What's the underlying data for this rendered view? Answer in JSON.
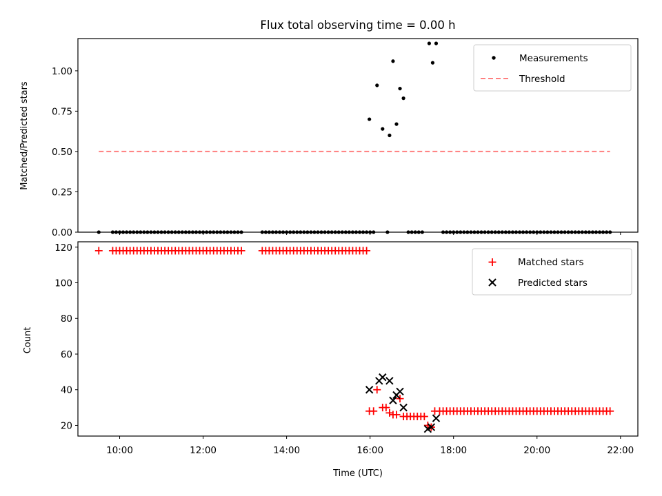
{
  "title": "Flux total observing time = 0.00 h",
  "colors": {
    "threshold": "#ff7f7f",
    "matched": "#ff0000",
    "predicted": "#000000",
    "measurements": "#000000"
  },
  "chart_data": [
    {
      "type": "scatter",
      "ylabel": "Matched/Predicted stars",
      "xlim": [
        "09:00",
        "22:25"
      ],
      "ylim": [
        0,
        1.2
      ],
      "yticks": [
        "0.00",
        "0.25",
        "0.50",
        "0.75",
        "1.00"
      ],
      "legend": [
        "Measurements",
        "Threshold"
      ],
      "legend_position": "top-right",
      "threshold": {
        "name": "Threshold",
        "value": 0.5,
        "x": [
          "09:30",
          "21:45"
        ]
      },
      "measurements": {
        "name": "Measurements",
        "points": [
          [
            "09:30",
            0
          ],
          [
            "09:50",
            0
          ],
          [
            "09:55",
            0
          ],
          [
            "10:00",
            0
          ],
          [
            "10:05",
            0
          ],
          [
            "10:10",
            0
          ],
          [
            "10:15",
            0
          ],
          [
            "10:20",
            0
          ],
          [
            "10:25",
            0
          ],
          [
            "10:30",
            0
          ],
          [
            "10:35",
            0
          ],
          [
            "10:40",
            0
          ],
          [
            "10:45",
            0
          ],
          [
            "10:50",
            0
          ],
          [
            "10:55",
            0
          ],
          [
            "11:00",
            0
          ],
          [
            "11:05",
            0
          ],
          [
            "11:10",
            0
          ],
          [
            "11:15",
            0
          ],
          [
            "11:20",
            0
          ],
          [
            "11:25",
            0
          ],
          [
            "11:30",
            0
          ],
          [
            "11:35",
            0
          ],
          [
            "11:40",
            0
          ],
          [
            "11:45",
            0
          ],
          [
            "11:50",
            0
          ],
          [
            "11:55",
            0
          ],
          [
            "12:00",
            0
          ],
          [
            "12:05",
            0
          ],
          [
            "12:10",
            0
          ],
          [
            "12:15",
            0
          ],
          [
            "12:20",
            0
          ],
          [
            "12:25",
            0
          ],
          [
            "12:30",
            0
          ],
          [
            "12:35",
            0
          ],
          [
            "12:40",
            0
          ],
          [
            "12:45",
            0
          ],
          [
            "12:50",
            0
          ],
          [
            "12:55",
            0
          ],
          [
            "13:25",
            0
          ],
          [
            "13:30",
            0
          ],
          [
            "13:35",
            0
          ],
          [
            "13:40",
            0
          ],
          [
            "13:45",
            0
          ],
          [
            "13:50",
            0
          ],
          [
            "13:55",
            0
          ],
          [
            "14:00",
            0
          ],
          [
            "14:05",
            0
          ],
          [
            "14:10",
            0
          ],
          [
            "14:15",
            0
          ],
          [
            "14:20",
            0
          ],
          [
            "14:25",
            0
          ],
          [
            "14:30",
            0
          ],
          [
            "14:35",
            0
          ],
          [
            "14:40",
            0
          ],
          [
            "14:45",
            0
          ],
          [
            "14:50",
            0
          ],
          [
            "14:55",
            0
          ],
          [
            "15:00",
            0
          ],
          [
            "15:05",
            0
          ],
          [
            "15:10",
            0
          ],
          [
            "15:15",
            0
          ],
          [
            "15:20",
            0
          ],
          [
            "15:25",
            0
          ],
          [
            "15:30",
            0
          ],
          [
            "15:35",
            0
          ],
          [
            "15:40",
            0
          ],
          [
            "15:45",
            0
          ],
          [
            "15:50",
            0
          ],
          [
            "15:55",
            0
          ],
          [
            "16:00",
            0
          ],
          [
            "16:05",
            0
          ],
          [
            "16:25",
            0
          ],
          [
            "15:59",
            0.7
          ],
          [
            "16:10",
            0.91
          ],
          [
            "16:18",
            0.64
          ],
          [
            "16:28",
            0.6
          ],
          [
            "16:33",
            1.06
          ],
          [
            "16:38",
            0.67
          ],
          [
            "16:43",
            0.89
          ],
          [
            "16:48",
            0.83
          ],
          [
            "16:55",
            0
          ],
          [
            "17:00",
            0
          ],
          [
            "17:05",
            0
          ],
          [
            "17:10",
            0
          ],
          [
            "17:15",
            0
          ],
          [
            "17:25",
            1.17
          ],
          [
            "17:30",
            1.05
          ],
          [
            "17:35",
            1.17
          ],
          [
            "17:45",
            0
          ],
          [
            "17:50",
            0
          ],
          [
            "17:55",
            0
          ],
          [
            "18:00",
            0
          ],
          [
            "18:05",
            0
          ],
          [
            "18:10",
            0
          ],
          [
            "18:15",
            0
          ],
          [
            "18:20",
            0
          ],
          [
            "18:25",
            0
          ],
          [
            "18:30",
            0
          ],
          [
            "18:35",
            0
          ],
          [
            "18:40",
            0
          ],
          [
            "18:45",
            0
          ],
          [
            "18:50",
            0
          ],
          [
            "18:55",
            0
          ],
          [
            "19:00",
            0
          ],
          [
            "19:05",
            0
          ],
          [
            "19:10",
            0
          ],
          [
            "19:15",
            0
          ],
          [
            "19:20",
            0
          ],
          [
            "19:25",
            0
          ],
          [
            "19:30",
            0
          ],
          [
            "19:35",
            0
          ],
          [
            "19:40",
            0
          ],
          [
            "19:45",
            0
          ],
          [
            "19:50",
            0
          ],
          [
            "19:55",
            0
          ],
          [
            "20:00",
            0
          ],
          [
            "20:05",
            0
          ],
          [
            "20:10",
            0
          ],
          [
            "20:15",
            0
          ],
          [
            "20:20",
            0
          ],
          [
            "20:25",
            0
          ],
          [
            "20:30",
            0
          ],
          [
            "20:35",
            0
          ],
          [
            "20:40",
            0
          ],
          [
            "20:45",
            0
          ],
          [
            "20:50",
            0
          ],
          [
            "20:55",
            0
          ],
          [
            "21:00",
            0
          ],
          [
            "21:05",
            0
          ],
          [
            "21:10",
            0
          ],
          [
            "21:15",
            0
          ],
          [
            "21:20",
            0
          ],
          [
            "21:25",
            0
          ],
          [
            "21:30",
            0
          ],
          [
            "21:35",
            0
          ],
          [
            "21:40",
            0
          ],
          [
            "21:45",
            0
          ]
        ]
      }
    },
    {
      "type": "scatter",
      "xlabel": "Time (UTC)",
      "ylabel": "Count",
      "xlim": [
        "09:00",
        "22:25"
      ],
      "ylim": [
        14,
        123
      ],
      "xticks": [
        "10:00",
        "12:00",
        "14:00",
        "16:00",
        "18:00",
        "20:00",
        "22:00"
      ],
      "yticks": [
        "20",
        "40",
        "60",
        "80",
        "100",
        "120"
      ],
      "legend": [
        "Matched stars",
        "Predicted stars"
      ],
      "legend_position": "top-right",
      "matched": {
        "name": "Matched stars",
        "points": [
          [
            "09:30",
            118
          ],
          [
            "09:50",
            118
          ],
          [
            "09:55",
            118
          ],
          [
            "10:00",
            118
          ],
          [
            "10:05",
            118
          ],
          [
            "10:10",
            118
          ],
          [
            "10:15",
            118
          ],
          [
            "10:20",
            118
          ],
          [
            "10:25",
            118
          ],
          [
            "10:30",
            118
          ],
          [
            "10:35",
            118
          ],
          [
            "10:40",
            118
          ],
          [
            "10:45",
            118
          ],
          [
            "10:50",
            118
          ],
          [
            "10:55",
            118
          ],
          [
            "11:00",
            118
          ],
          [
            "11:05",
            118
          ],
          [
            "11:10",
            118
          ],
          [
            "11:15",
            118
          ],
          [
            "11:20",
            118
          ],
          [
            "11:25",
            118
          ],
          [
            "11:30",
            118
          ],
          [
            "11:35",
            118
          ],
          [
            "11:40",
            118
          ],
          [
            "11:45",
            118
          ],
          [
            "11:50",
            118
          ],
          [
            "11:55",
            118
          ],
          [
            "12:00",
            118
          ],
          [
            "12:05",
            118
          ],
          [
            "12:10",
            118
          ],
          [
            "12:15",
            118
          ],
          [
            "12:20",
            118
          ],
          [
            "12:25",
            118
          ],
          [
            "12:30",
            118
          ],
          [
            "12:35",
            118
          ],
          [
            "12:40",
            118
          ],
          [
            "12:45",
            118
          ],
          [
            "12:50",
            118
          ],
          [
            "12:55",
            118
          ],
          [
            "13:25",
            118
          ],
          [
            "13:30",
            118
          ],
          [
            "13:35",
            118
          ],
          [
            "13:40",
            118
          ],
          [
            "13:45",
            118
          ],
          [
            "13:50",
            118
          ],
          [
            "13:55",
            118
          ],
          [
            "14:00",
            118
          ],
          [
            "14:05",
            118
          ],
          [
            "14:10",
            118
          ],
          [
            "14:15",
            118
          ],
          [
            "14:20",
            118
          ],
          [
            "14:25",
            118
          ],
          [
            "14:30",
            118
          ],
          [
            "14:35",
            118
          ],
          [
            "14:40",
            118
          ],
          [
            "14:45",
            118
          ],
          [
            "14:50",
            118
          ],
          [
            "14:55",
            118
          ],
          [
            "15:00",
            118
          ],
          [
            "15:05",
            118
          ],
          [
            "15:10",
            118
          ],
          [
            "15:15",
            118
          ],
          [
            "15:20",
            118
          ],
          [
            "15:25",
            118
          ],
          [
            "15:30",
            118
          ],
          [
            "15:35",
            118
          ],
          [
            "15:40",
            118
          ],
          [
            "15:45",
            118
          ],
          [
            "15:50",
            118
          ],
          [
            "15:55",
            118
          ],
          [
            "15:59",
            28
          ],
          [
            "16:05",
            28
          ],
          [
            "16:10",
            40
          ],
          [
            "16:18",
            30
          ],
          [
            "16:23",
            30
          ],
          [
            "16:28",
            27
          ],
          [
            "16:33",
            26
          ],
          [
            "16:38",
            26
          ],
          [
            "16:43",
            35
          ],
          [
            "16:48",
            25
          ],
          [
            "16:53",
            25
          ],
          [
            "16:58",
            25
          ],
          [
            "17:03",
            25
          ],
          [
            "17:08",
            25
          ],
          [
            "17:13",
            25
          ],
          [
            "17:18",
            25
          ],
          [
            "17:23",
            20
          ],
          [
            "17:28",
            19
          ],
          [
            "17:33",
            28
          ],
          [
            "17:40",
            28
          ],
          [
            "17:45",
            28
          ],
          [
            "17:50",
            28
          ],
          [
            "17:55",
            28
          ],
          [
            "18:00",
            28
          ],
          [
            "18:05",
            28
          ],
          [
            "18:10",
            28
          ],
          [
            "18:15",
            28
          ],
          [
            "18:20",
            28
          ],
          [
            "18:25",
            28
          ],
          [
            "18:30",
            28
          ],
          [
            "18:35",
            28
          ],
          [
            "18:40",
            28
          ],
          [
            "18:45",
            28
          ],
          [
            "18:50",
            28
          ],
          [
            "18:55",
            28
          ],
          [
            "19:00",
            28
          ],
          [
            "19:05",
            28
          ],
          [
            "19:10",
            28
          ],
          [
            "19:15",
            28
          ],
          [
            "19:20",
            28
          ],
          [
            "19:25",
            28
          ],
          [
            "19:30",
            28
          ],
          [
            "19:35",
            28
          ],
          [
            "19:40",
            28
          ],
          [
            "19:45",
            28
          ],
          [
            "19:50",
            28
          ],
          [
            "19:55",
            28
          ],
          [
            "20:00",
            28
          ],
          [
            "20:05",
            28
          ],
          [
            "20:10",
            28
          ],
          [
            "20:15",
            28
          ],
          [
            "20:20",
            28
          ],
          [
            "20:25",
            28
          ],
          [
            "20:30",
            28
          ],
          [
            "20:35",
            28
          ],
          [
            "20:40",
            28
          ],
          [
            "20:45",
            28
          ],
          [
            "20:50",
            28
          ],
          [
            "20:55",
            28
          ],
          [
            "21:00",
            28
          ],
          [
            "21:05",
            28
          ],
          [
            "21:10",
            28
          ],
          [
            "21:15",
            28
          ],
          [
            "21:20",
            28
          ],
          [
            "21:25",
            28
          ],
          [
            "21:30",
            28
          ],
          [
            "21:35",
            28
          ],
          [
            "21:40",
            28
          ],
          [
            "21:45",
            28
          ]
        ]
      },
      "predicted": {
        "name": "Predicted stars",
        "points": [
          [
            "15:59",
            40
          ],
          [
            "16:13",
            45
          ],
          [
            "16:18",
            47
          ],
          [
            "16:28",
            45
          ],
          [
            "16:33",
            34
          ],
          [
            "16:38",
            37
          ],
          [
            "16:43",
            39
          ],
          [
            "16:48",
            30
          ],
          [
            "17:23",
            18
          ],
          [
            "17:28",
            19
          ],
          [
            "17:35",
            24
          ]
        ]
      }
    }
  ]
}
